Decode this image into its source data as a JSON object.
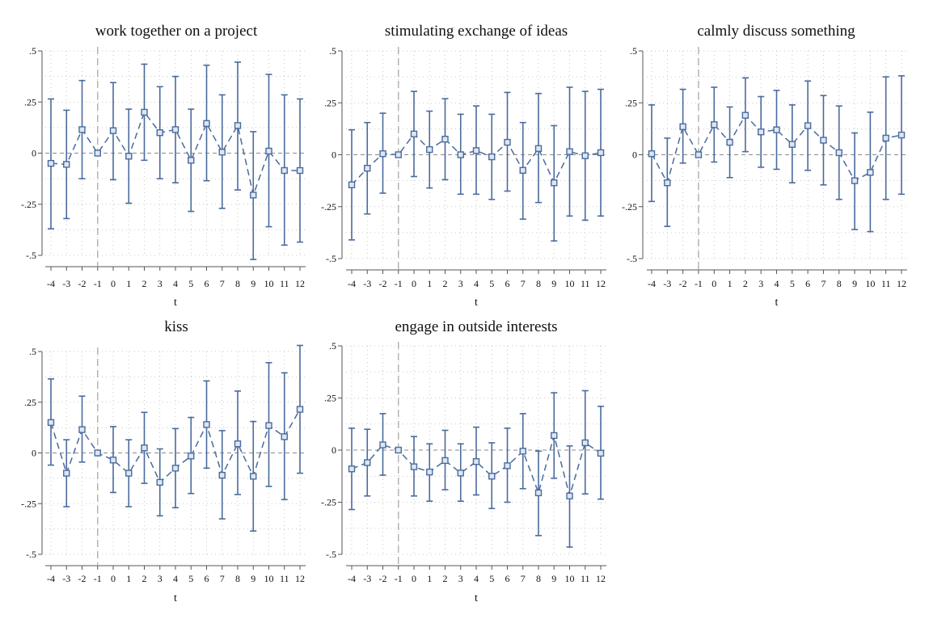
{
  "style": {
    "series_color": "#4a6b9c",
    "grid_color": "#b8b8b8",
    "axis_color": "#555555",
    "zero_line_color": "#8a8a8a",
    "ref_line_color": "#b0b0b0",
    "background": "#ffffff"
  },
  "chart_data": [
    {
      "type": "scatter",
      "title": "work together on a project",
      "xlabel": "t",
      "ylabel": "",
      "x": [
        -4,
        -3,
        -2,
        -1,
        0,
        1,
        2,
        3,
        4,
        5,
        6,
        7,
        8,
        9,
        10,
        11,
        12
      ],
      "y": [
        -0.05,
        -0.055,
        0.115,
        0.0,
        0.11,
        -0.015,
        0.2,
        0.1,
        0.115,
        -0.035,
        0.145,
        0.005,
        0.135,
        -0.205,
        0.01,
        -0.085,
        -0.085
      ],
      "lower": [
        -0.37,
        -0.32,
        -0.125,
        0.0,
        -0.13,
        -0.245,
        -0.035,
        -0.125,
        -0.145,
        -0.285,
        -0.135,
        -0.27,
        -0.18,
        -0.52,
        -0.36,
        -0.45,
        -0.435
      ],
      "upper": [
        0.265,
        0.21,
        0.355,
        0.0,
        0.345,
        0.215,
        0.435,
        0.325,
        0.375,
        0.215,
        0.43,
        0.285,
        0.445,
        0.105,
        0.385,
        0.285,
        0.265
      ],
      "xticks": [
        "-4",
        "-3",
        "-2",
        "-1",
        "0",
        "1",
        "2",
        "3",
        "4",
        "5",
        "6",
        "7",
        "8",
        "9",
        "10",
        "11",
        "12"
      ],
      "yticks": [
        ".5",
        ".25",
        "0",
        "-.25",
        "-.5"
      ],
      "ytick_values": [
        0.5,
        0.25,
        0,
        -0.25,
        -0.5
      ],
      "ylim": [
        -0.5,
        0.5
      ],
      "reference_x": -1,
      "reference_y": 0,
      "grid": true
    },
    {
      "type": "scatter",
      "title": "stimulating exchange of ideas",
      "xlabel": "t",
      "ylabel": "",
      "x": [
        -4,
        -3,
        -2,
        -1,
        0,
        1,
        2,
        3,
        4,
        5,
        6,
        7,
        8,
        9,
        10,
        11,
        12
      ],
      "y": [
        -0.145,
        -0.065,
        0.005,
        0.0,
        0.1,
        0.025,
        0.075,
        0.0,
        0.02,
        -0.01,
        0.06,
        -0.075,
        0.03,
        -0.135,
        0.015,
        -0.005,
        0.01
      ],
      "lower": [
        -0.41,
        -0.285,
        -0.185,
        0.0,
        -0.105,
        -0.16,
        -0.12,
        -0.19,
        -0.19,
        -0.215,
        -0.175,
        -0.31,
        -0.23,
        -0.415,
        -0.295,
        -0.315,
        -0.295
      ],
      "upper": [
        0.12,
        0.155,
        0.2,
        0.0,
        0.305,
        0.21,
        0.27,
        0.195,
        0.235,
        0.195,
        0.3,
        0.155,
        0.295,
        0.14,
        0.325,
        0.305,
        0.315
      ],
      "xticks": [
        "-4",
        "-3",
        "-2",
        "-1",
        "0",
        "1",
        "2",
        "3",
        "4",
        "5",
        "6",
        "7",
        "8",
        "9",
        "10",
        "11",
        "12"
      ],
      "yticks": [
        ".5",
        ".25",
        "0",
        "-.25",
        "-.5"
      ],
      "ytick_values": [
        0.5,
        0.25,
        0,
        -0.25,
        -0.5
      ],
      "ylim": [
        -0.5,
        0.5
      ],
      "reference_x": -1,
      "reference_y": 0,
      "grid": true
    },
    {
      "type": "scatter",
      "title": "calmly discuss something",
      "xlabel": "t",
      "ylabel": "",
      "x": [
        -4,
        -3,
        -2,
        -1,
        0,
        1,
        2,
        3,
        4,
        5,
        6,
        7,
        8,
        9,
        10,
        11,
        12
      ],
      "y": [
        0.005,
        -0.135,
        0.135,
        0.0,
        0.145,
        0.06,
        0.19,
        0.11,
        0.12,
        0.05,
        0.14,
        0.07,
        0.01,
        -0.125,
        -0.085,
        0.08,
        0.095
      ],
      "lower": [
        -0.225,
        -0.345,
        -0.04,
        0.0,
        -0.035,
        -0.11,
        0.015,
        -0.06,
        -0.07,
        -0.135,
        -0.075,
        -0.145,
        -0.215,
        -0.36,
        -0.37,
        -0.215,
        -0.19
      ],
      "upper": [
        0.24,
        0.08,
        0.315,
        0.0,
        0.325,
        0.23,
        0.37,
        0.28,
        0.31,
        0.24,
        0.355,
        0.285,
        0.235,
        0.105,
        0.205,
        0.375,
        0.38
      ],
      "xticks": [
        "-4",
        "-3",
        "-2",
        "-1",
        "0",
        "1",
        "2",
        "3",
        "4",
        "5",
        "6",
        "7",
        "8",
        "9",
        "10",
        "11",
        "12"
      ],
      "yticks": [
        ".5",
        ".25",
        "0",
        "-.25",
        "-.5"
      ],
      "ytick_values": [
        0.5,
        0.25,
        0,
        -0.25,
        -0.5
      ],
      "ylim": [
        -0.5,
        0.5
      ],
      "reference_x": -1,
      "reference_y": 0,
      "grid": true
    },
    {
      "type": "scatter",
      "title": "kiss",
      "xlabel": "t",
      "ylabel": "",
      "x": [
        -4,
        -3,
        -2,
        -1,
        0,
        1,
        2,
        3,
        4,
        5,
        6,
        7,
        8,
        9,
        10,
        11,
        12
      ],
      "y": [
        0.15,
        -0.1,
        0.115,
        0.0,
        -0.035,
        -0.1,
        0.025,
        -0.145,
        -0.075,
        -0.015,
        0.14,
        -0.11,
        0.045,
        -0.115,
        0.135,
        0.08,
        0.215
      ],
      "lower": [
        -0.06,
        -0.265,
        -0.045,
        0.0,
        -0.195,
        -0.265,
        -0.15,
        -0.31,
        -0.27,
        -0.2,
        -0.075,
        -0.325,
        -0.205,
        -0.385,
        -0.165,
        -0.23,
        -0.1
      ],
      "upper": [
        0.365,
        0.065,
        0.28,
        0.0,
        0.13,
        0.065,
        0.2,
        0.02,
        0.12,
        0.175,
        0.355,
        0.11,
        0.305,
        0.155,
        0.445,
        0.395,
        0.53
      ],
      "xticks": [
        "-4",
        "-3",
        "-2",
        "-1",
        "0",
        "1",
        "2",
        "3",
        "4",
        "5",
        "6",
        "7",
        "8",
        "9",
        "10",
        "11",
        "12"
      ],
      "yticks": [
        ".5",
        ".25",
        "0",
        "-.25",
        "-.5"
      ],
      "ytick_values": [
        0.5,
        0.25,
        0,
        -0.25,
        -0.5
      ],
      "ylim": [
        -0.5,
        0.5
      ],
      "reference_x": -1,
      "reference_y": 0,
      "grid": true
    },
    {
      "type": "scatter",
      "title": "engage in outside interests",
      "xlabel": "t",
      "ylabel": "",
      "x": [
        -4,
        -3,
        -2,
        -1,
        0,
        1,
        2,
        3,
        4,
        5,
        6,
        7,
        8,
        9,
        10,
        11,
        12
      ],
      "y": [
        -0.09,
        -0.06,
        0.025,
        0.0,
        -0.08,
        -0.105,
        -0.05,
        -0.11,
        -0.055,
        -0.125,
        -0.075,
        -0.005,
        -0.205,
        0.07,
        -0.22,
        0.035,
        -0.015
      ],
      "lower": [
        -0.285,
        -0.22,
        -0.12,
        0.0,
        -0.22,
        -0.245,
        -0.19,
        -0.245,
        -0.215,
        -0.28,
        -0.25,
        -0.185,
        -0.41,
        -0.135,
        -0.465,
        -0.21,
        -0.235
      ],
      "upper": [
        0.105,
        0.1,
        0.175,
        0.0,
        0.065,
        0.03,
        0.095,
        0.03,
        0.11,
        0.035,
        0.105,
        0.175,
        -0.005,
        0.275,
        0.02,
        0.285,
        0.21
      ],
      "xticks": [
        "-4",
        "-3",
        "-2",
        "-1",
        "0",
        "1",
        "2",
        "3",
        "4",
        "5",
        "6",
        "7",
        "8",
        "9",
        "10",
        "11",
        "12"
      ],
      "yticks": [
        ".5",
        ".25",
        "0",
        "-.25",
        "-.5"
      ],
      "ytick_values": [
        0.5,
        0.25,
        0,
        -0.25,
        -0.5
      ],
      "ylim": [
        -0.5,
        0.5
      ],
      "reference_x": -1,
      "reference_y": 0,
      "grid": true
    }
  ]
}
